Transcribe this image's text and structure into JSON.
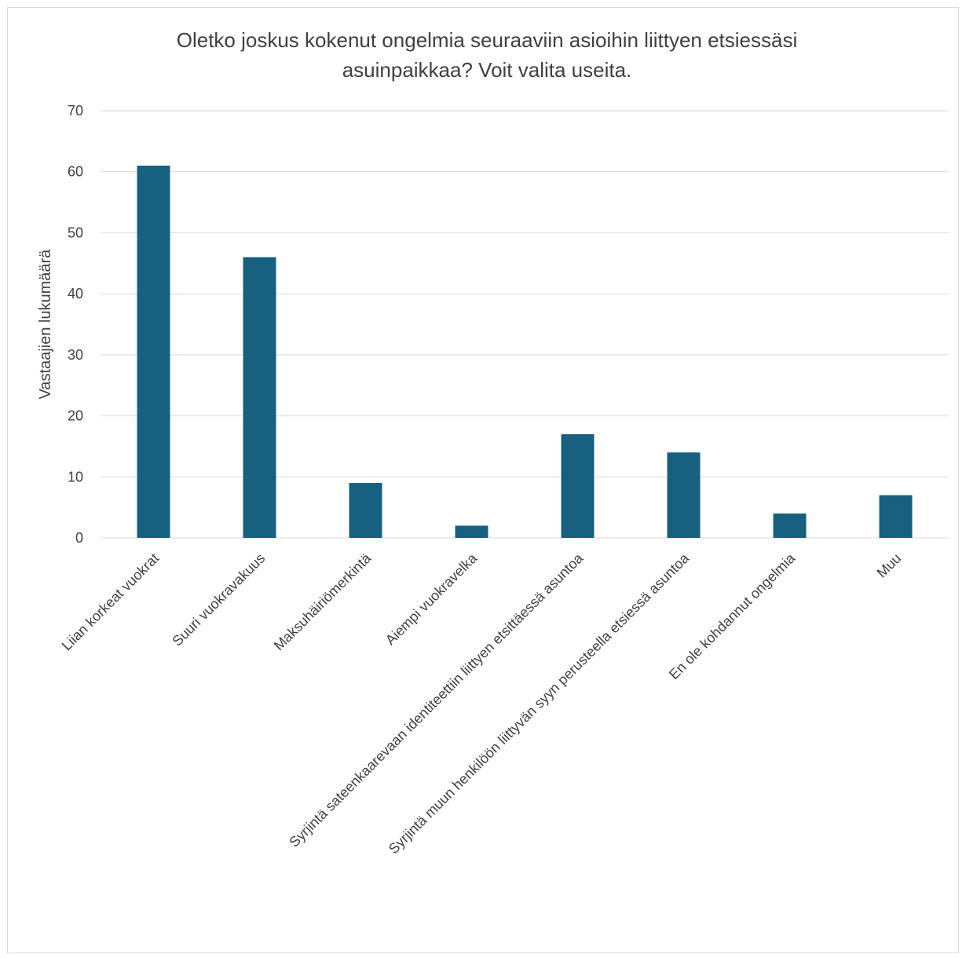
{
  "chart_data": {
    "type": "bar",
    "title_lines": [
      "Oletko joskus kokenut ongelmia seuraaviin asioihin liittyen etsiessäsi",
      "asuinpaikkaa? Voit valita useita."
    ],
    "xlabel": "",
    "ylabel": "Vastaajien lukumäärä",
    "categories": [
      "Liian korkeat vuokrat",
      "Suuri vuokravakuus",
      "Maksuhäiriömerkintä",
      "Aiempi vuokravelka",
      "Syrjintä sateenkaarevaan identiteettiin liittyen etsittäessä asuntoa",
      "Syrjintä muun henkilöön liittyvän syyn perusteella etsiessä asuntoa",
      "En ole kohdannut ongelmia",
      "Muu"
    ],
    "values": [
      61,
      46,
      9,
      2,
      17,
      14,
      4,
      7
    ],
    "ylim": [
      0,
      70
    ],
    "yticks": [
      "0",
      "10",
      "20",
      "30",
      "40",
      "50",
      "60",
      "70"
    ],
    "grid": true,
    "legend": "none",
    "bar_color": "#17607f",
    "grid_color": "#d9d9d9"
  }
}
